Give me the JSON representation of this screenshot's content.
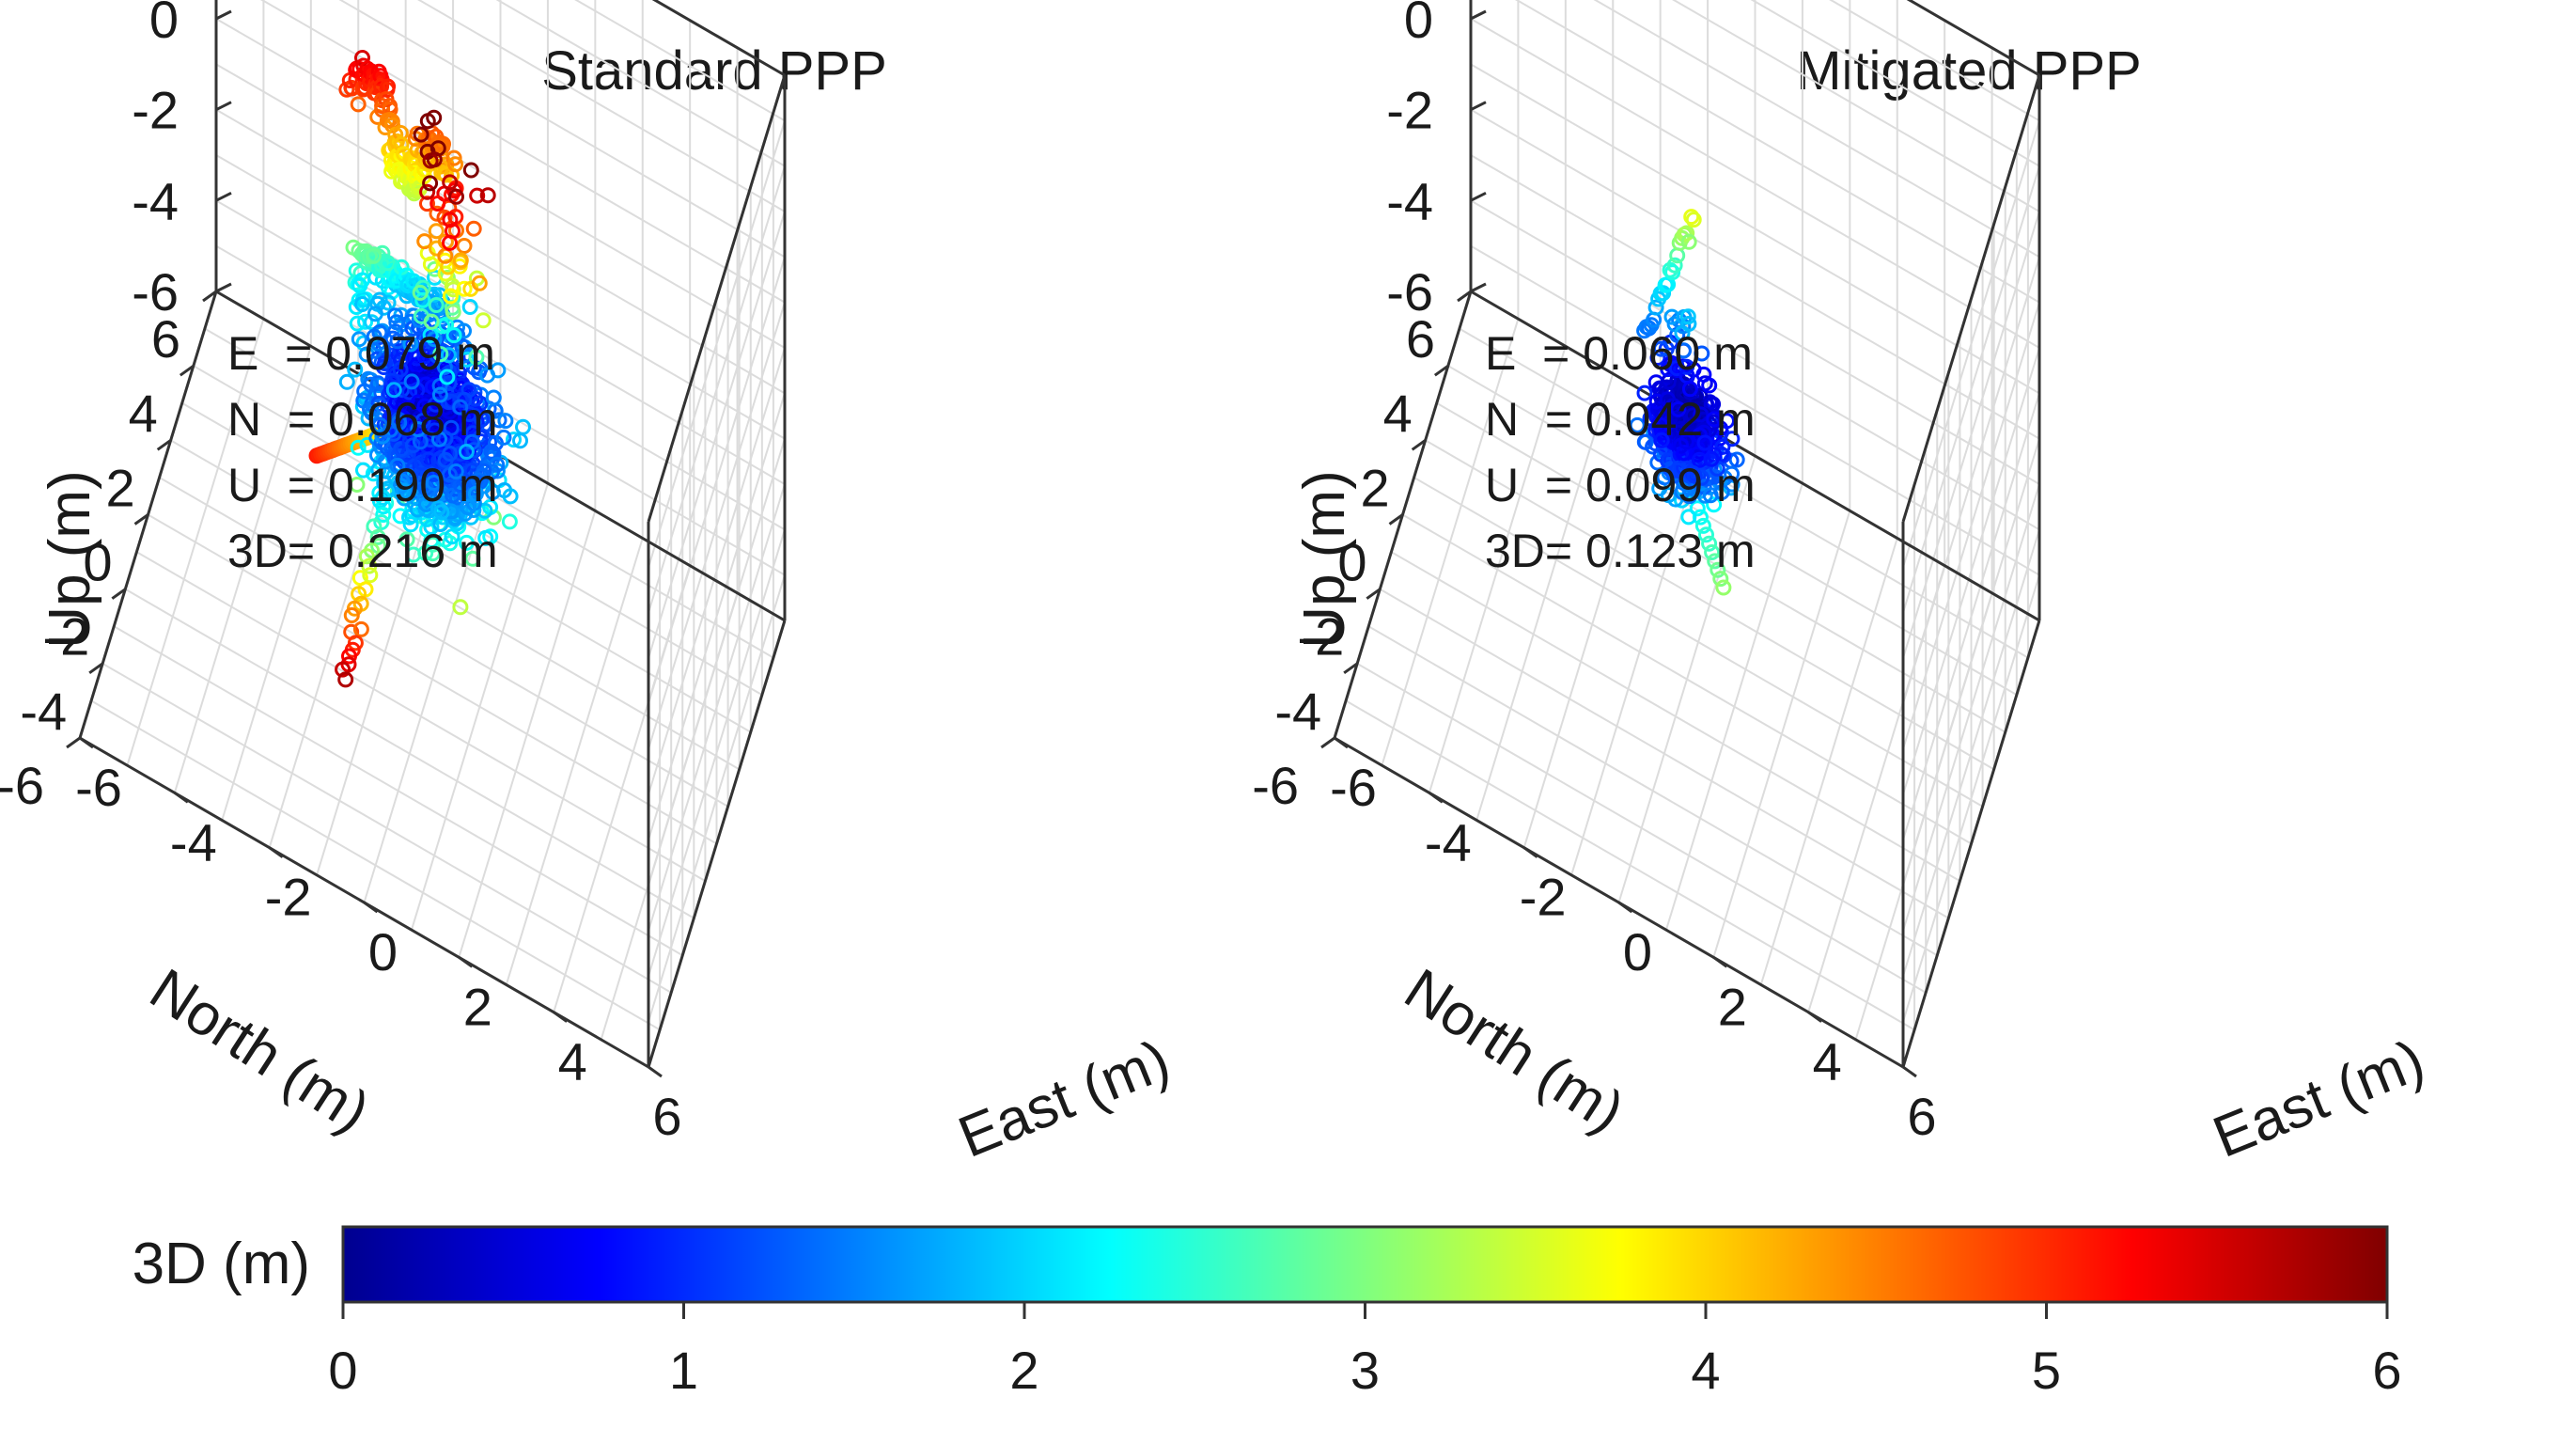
{
  "chart_data": [
    {
      "type": "scatter",
      "projection": "3d",
      "title": "Standard PPP",
      "xlabel": "East (m)",
      "ylabel": "North (m)",
      "zlabel": "Up (m)",
      "xlim": [
        -6,
        6
      ],
      "ylim": [
        -6,
        6
      ],
      "zlim": [
        -6,
        6
      ],
      "ticks": [
        "-6",
        "-4",
        "-2",
        "0",
        "2",
        "4",
        "6"
      ],
      "grid": true,
      "stats": [
        {
          "label": "E  = 0.079 m"
        },
        {
          "label": "N  = 0.068 m"
        },
        {
          "label": "U  = 0.190 m"
        },
        {
          "label": "3D= 0.216 m"
        }
      ],
      "marker": "circle",
      "color_by": "3D error (m)",
      "spread_e": 0.079,
      "spread_n": 0.068,
      "spread_u": 0.19
    },
    {
      "type": "scatter",
      "projection": "3d",
      "title": "Mitigated PPP",
      "xlabel": "East (m)",
      "ylabel": "North (m)",
      "zlabel": "Up (m)",
      "xlim": [
        -6,
        6
      ],
      "ylim": [
        -6,
        6
      ],
      "zlim": [
        -6,
        6
      ],
      "ticks": [
        "-6",
        "-4",
        "-2",
        "0",
        "2",
        "4",
        "6"
      ],
      "grid": true,
      "stats": [
        {
          "label": "E  = 0.060 m"
        },
        {
          "label": "N  = 0.042 m"
        },
        {
          "label": "U  = 0.099 m"
        },
        {
          "label": "3D= 0.123 m"
        }
      ],
      "marker": "circle",
      "color_by": "3D error (m)",
      "spread_e": 0.06,
      "spread_n": 0.042,
      "spread_u": 0.099
    }
  ],
  "colorbar": {
    "label": "3D (m)",
    "range": [
      0,
      6
    ],
    "ticks": [
      "0",
      "1",
      "2",
      "3",
      "4",
      "5",
      "6"
    ],
    "colormap": [
      "#00008f",
      "#0000ff",
      "#00ffff",
      "#ffff00",
      "#ff0000",
      "#800000"
    ]
  }
}
